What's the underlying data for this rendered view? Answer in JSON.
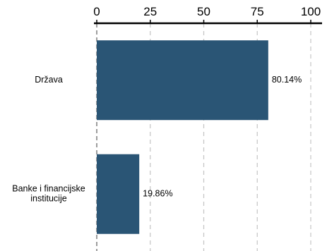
{
  "chart_data": {
    "type": "bar",
    "orientation": "horizontal",
    "categories": [
      "Država",
      "Banke i financijske\ninstitucije"
    ],
    "values": [
      80.14,
      19.86
    ],
    "data_labels": [
      "80.14%",
      "19.86%"
    ],
    "xlim": [
      0,
      100
    ],
    "x_ticks": [
      0,
      25,
      50,
      75,
      100
    ],
    "x_axis_position": "top",
    "grid": "vertical dashed",
    "bar_color": "#2a5575",
    "title": "",
    "xlabel": "",
    "ylabel": ""
  }
}
